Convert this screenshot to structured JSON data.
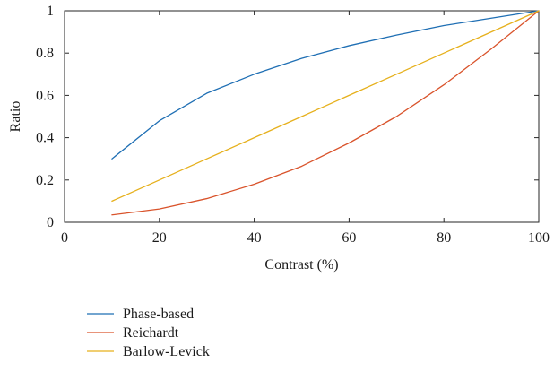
{
  "chart_data": {
    "type": "line",
    "title": "",
    "xlabel": "Contrast (%)",
    "ylabel": "Ratio",
    "xlim": [
      0,
      100
    ],
    "ylim": [
      0,
      1
    ],
    "x_ticks": [
      "0",
      "20",
      "40",
      "60",
      "80",
      "100"
    ],
    "y_ticks": [
      "0",
      "0.2",
      "0.4",
      "0.6",
      "0.8",
      "1"
    ],
    "grid": false,
    "legend_position": "below",
    "x": [
      10,
      20,
      30,
      40,
      50,
      60,
      70,
      80,
      90,
      100
    ],
    "series": [
      {
        "name": "Phase-based",
        "color": "#1f6fb4",
        "values": [
          0.3,
          0.48,
          0.61,
          0.7,
          0.775,
          0.835,
          0.885,
          0.93,
          0.965,
          1.0
        ]
      },
      {
        "name": "Reichardt",
        "color": "#d9532b",
        "values": [
          0.035,
          0.063,
          0.112,
          0.18,
          0.265,
          0.375,
          0.5,
          0.65,
          0.82,
          1.0
        ]
      },
      {
        "name": "Barlow-Levick",
        "color": "#e6b01c",
        "values": [
          0.1,
          0.2,
          0.3,
          0.4,
          0.5,
          0.6,
          0.7,
          0.8,
          0.9,
          1.0
        ]
      }
    ]
  }
}
